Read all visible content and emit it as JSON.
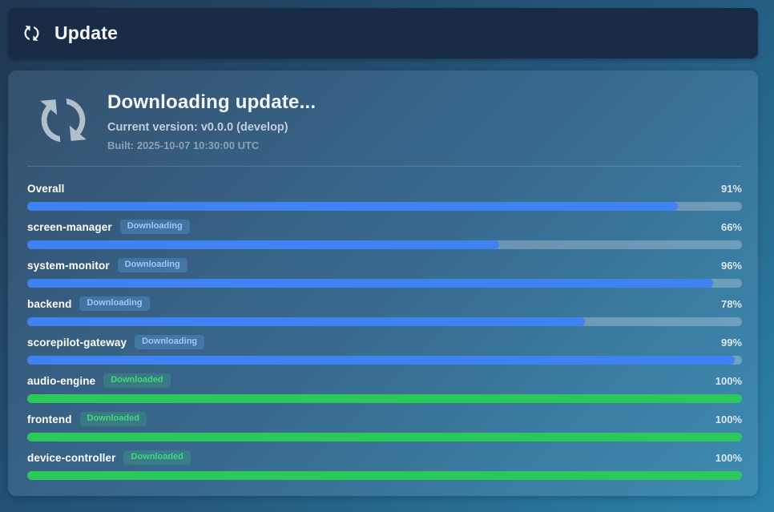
{
  "header": {
    "icon": "sync-icon",
    "title": "Update"
  },
  "panel": {
    "icon": "sync-icon",
    "title": "Downloading update...",
    "version_line": "Current version: v0.0.0 (develop)",
    "built_line": "Built: 2025-10-07 10:30:00 UTC",
    "components": [
      {
        "name": "Overall",
        "badge": "",
        "state": "downloading",
        "percent": 91,
        "percent_label": "91%"
      },
      {
        "name": "screen-manager",
        "badge": "Downloading",
        "state": "downloading",
        "percent": 66,
        "percent_label": "66%"
      },
      {
        "name": "system-monitor",
        "badge": "Downloading",
        "state": "downloading",
        "percent": 96,
        "percent_label": "96%"
      },
      {
        "name": "backend",
        "badge": "Downloading",
        "state": "downloading",
        "percent": 78,
        "percent_label": "78%"
      },
      {
        "name": "scorepilot-gateway",
        "badge": "Downloading",
        "state": "downloading",
        "percent": 99,
        "percent_label": "99%"
      },
      {
        "name": "audio-engine",
        "badge": "Downloaded",
        "state": "downloaded",
        "percent": 100,
        "percent_label": "100%"
      },
      {
        "name": "frontend",
        "badge": "Downloaded",
        "state": "downloaded",
        "percent": 100,
        "percent_label": "100%"
      },
      {
        "name": "device-controller",
        "badge": "Downloaded",
        "state": "downloaded",
        "percent": 100,
        "percent_label": "100%"
      }
    ],
    "colors": {
      "downloading_fill": "#3f82f2",
      "downloaded_fill": "#2bc85a",
      "downloading_badge_text": "#9dc6f7",
      "downloaded_badge_text": "#40d878"
    }
  }
}
